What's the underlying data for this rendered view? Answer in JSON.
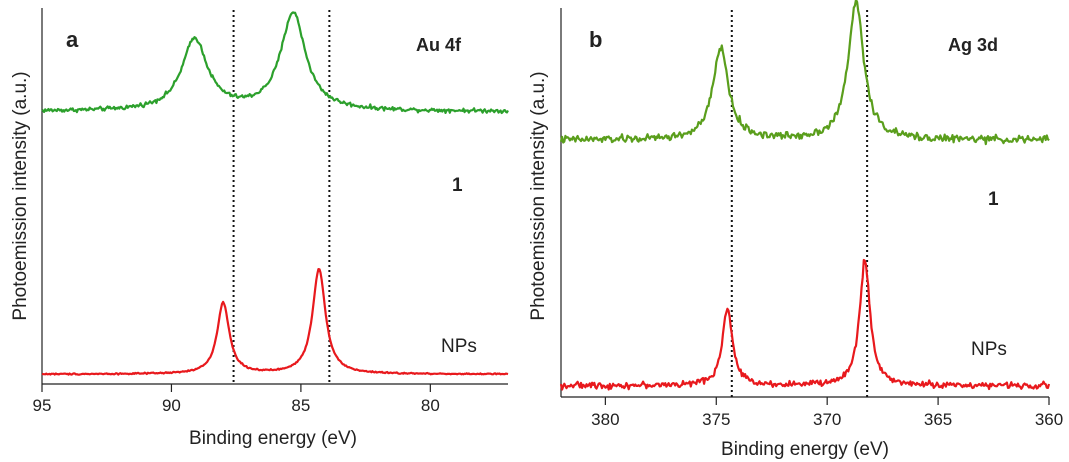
{
  "chart_data": [
    {
      "type": "line",
      "panel_label": "a",
      "element_label": "Au 4f",
      "xlabel": "Binding energy (eV)",
      "ylabel": "Photoemission intensity (a.u.)",
      "xlim": [
        95,
        77
      ],
      "x_reversed": true,
      "ticks": [
        "95",
        "90",
        "85",
        "80"
      ],
      "tick_values": [
        95,
        90,
        85,
        80
      ],
      "y_ticks_labeled": false,
      "reference_lines_x": [
        87.6,
        83.9
      ],
      "series": [
        {
          "name": "1",
          "color": "#2ca02c",
          "baseline": 0.62,
          "noise": 0.006,
          "peaks": [
            {
              "x": 89.1,
              "height": 0.38,
              "width": 0.6
            },
            {
              "x": 85.3,
              "height": 0.52,
              "width": 0.58
            }
          ]
        },
        {
          "name": "NPs",
          "color": "#e8191d",
          "baseline": 0.02,
          "noise": 0.002,
          "peaks": [
            {
              "x": 88.0,
              "height": 0.38,
              "width": 0.28
            },
            {
              "x": 84.3,
              "height": 0.56,
              "width": 0.3
            }
          ]
        }
      ]
    },
    {
      "type": "line",
      "panel_label": "b",
      "element_label": "Ag 3d",
      "xlabel": "Binding energy (eV)",
      "ylabel": "Photoemission intensity (a.u.)",
      "xlim": [
        382,
        360
      ],
      "x_reversed": true,
      "ticks": [
        "380",
        "375",
        "370",
        "365",
        "360"
      ],
      "tick_values": [
        380,
        375,
        370,
        365,
        360
      ],
      "y_ticks_labeled": false,
      "reference_lines_x": [
        374.3,
        368.2
      ],
      "series": [
        {
          "name": "1",
          "color": "#5a9e1c",
          "baseline": 0.5,
          "noise": 0.009,
          "peaks": [
            {
              "x": 374.8,
              "height": 0.4,
              "width": 0.42
            },
            {
              "x": 368.7,
              "height": 0.6,
              "width": 0.42
            }
          ]
        },
        {
          "name": "NPs",
          "color": "#e8191d",
          "baseline": 0.03,
          "noise": 0.008,
          "peaks": [
            {
              "x": 374.5,
              "height": 0.36,
              "width": 0.28
            },
            {
              "x": 368.3,
              "height": 0.6,
              "width": 0.28
            }
          ]
        }
      ]
    }
  ]
}
